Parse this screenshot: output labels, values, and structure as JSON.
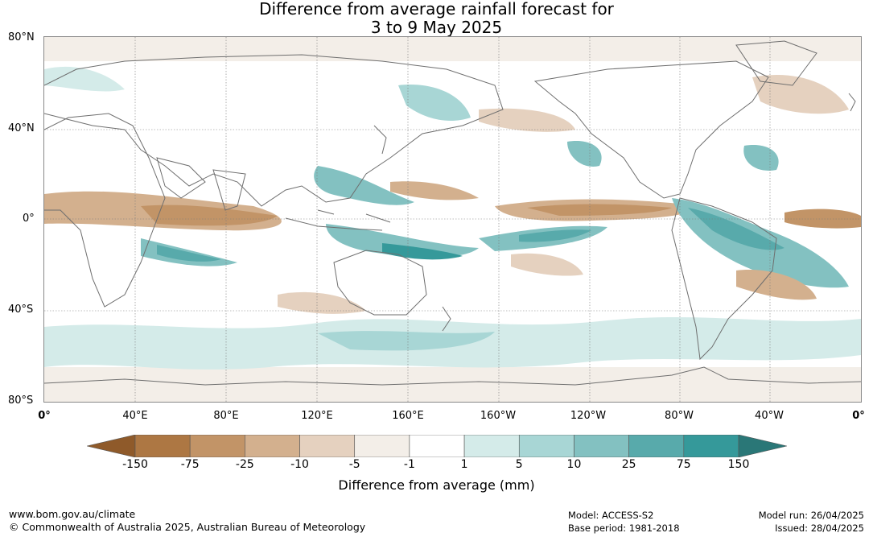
{
  "title": {
    "line1": "Difference from average rainfall forecast for",
    "line2": "3 to 9 May 2025"
  },
  "map": {
    "lat_labels": [
      "80°N",
      "40°N",
      "0°",
      "40°S",
      "80°S"
    ],
    "lon_labels": [
      "0°",
      "40°E",
      "80°E",
      "120°E",
      "160°E",
      "160°W",
      "120°W",
      "80°W",
      "40°W",
      "0°"
    ],
    "colors": {
      "land_outline": "#6e6e6e",
      "ocean": "#ffffff",
      "grid": "#7a7a7a"
    }
  },
  "legend": {
    "label": "Difference from average (mm)",
    "ticks": [
      "-150",
      "-75",
      "-25",
      "-10",
      "-5",
      "-1",
      "1",
      "5",
      "10",
      "25",
      "75",
      "150"
    ],
    "colors": [
      "#8f5a2a",
      "#ad7743",
      "#c29467",
      "#d3b08e",
      "#e5d1bf",
      "#f3eee8",
      "#ffffff",
      "#d4ebe9",
      "#a8d6d5",
      "#83c1c1",
      "#58aaab",
      "#35999a",
      "#2a7777"
    ]
  },
  "footer": {
    "url": "www.bom.gov.au/climate",
    "copyright": "© Commonwealth of Australia 2025, Australian Bureau of Meteorology",
    "model": "Model: ACCESS-S2",
    "base_period": "Base period: 1981-2018",
    "model_run": "Model run: 26/04/2025",
    "issued": "Issued: 28/04/2025"
  }
}
